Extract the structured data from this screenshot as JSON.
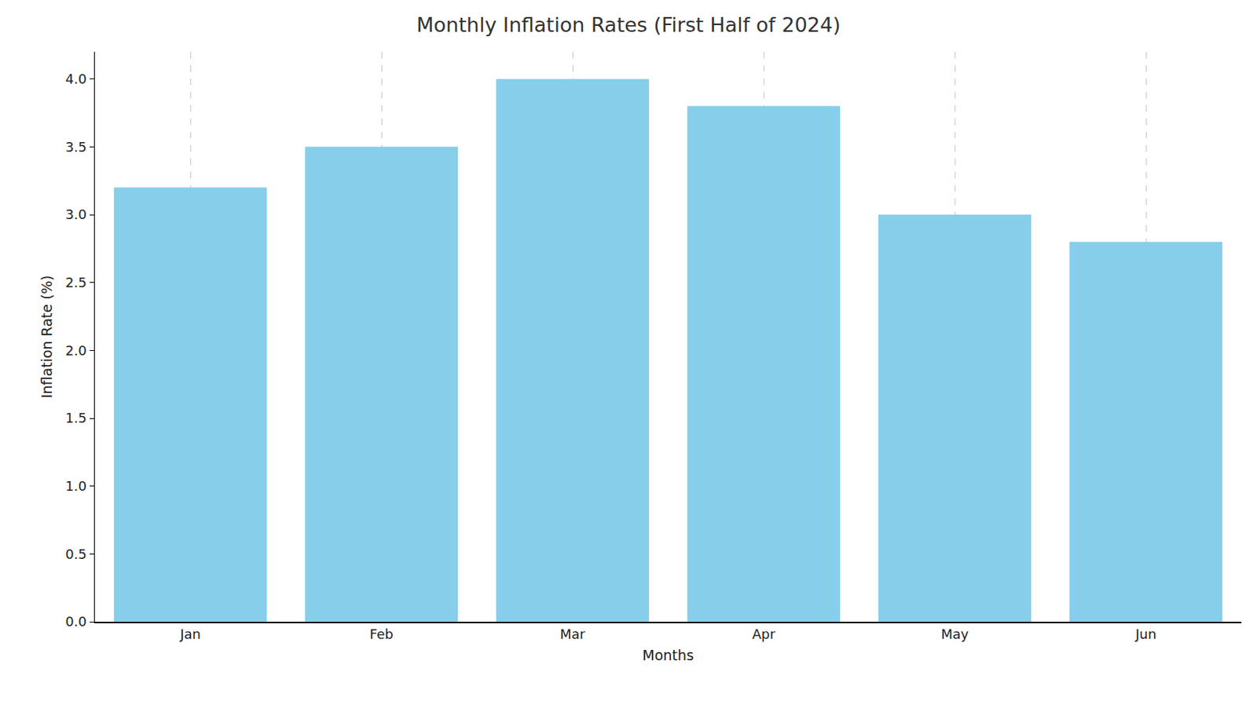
{
  "chart_data": {
    "type": "bar",
    "title": "Monthly Inflation Rates (First Half of 2024)",
    "x_label": "Months",
    "y_label": "Inflation Rate (%)",
    "categories": [
      "Jan",
      "Feb",
      "Mar",
      "Apr",
      "May",
      "Jun"
    ],
    "values": [
      3.2,
      3.5,
      4.0,
      3.8,
      3.0,
      2.8
    ],
    "color": "#87ceeb",
    "ylim": [
      0,
      4.2
    ],
    "yticks": [
      {
        "value": 0,
        "label": "0.0"
      },
      {
        "value": 0.5,
        "label": "0.5"
      },
      {
        "value": 1,
        "label": "1.0"
      },
      {
        "value": 1.5,
        "label": "1.5"
      },
      {
        "value": 2,
        "label": "2.0"
      },
      {
        "value": 2.5,
        "label": "2.5"
      },
      {
        "value": 3,
        "label": "3.0"
      },
      {
        "value": 3.5,
        "label": "3.5"
      },
      {
        "value": 4,
        "label": "4.0"
      }
    ],
    "grid": true
  }
}
